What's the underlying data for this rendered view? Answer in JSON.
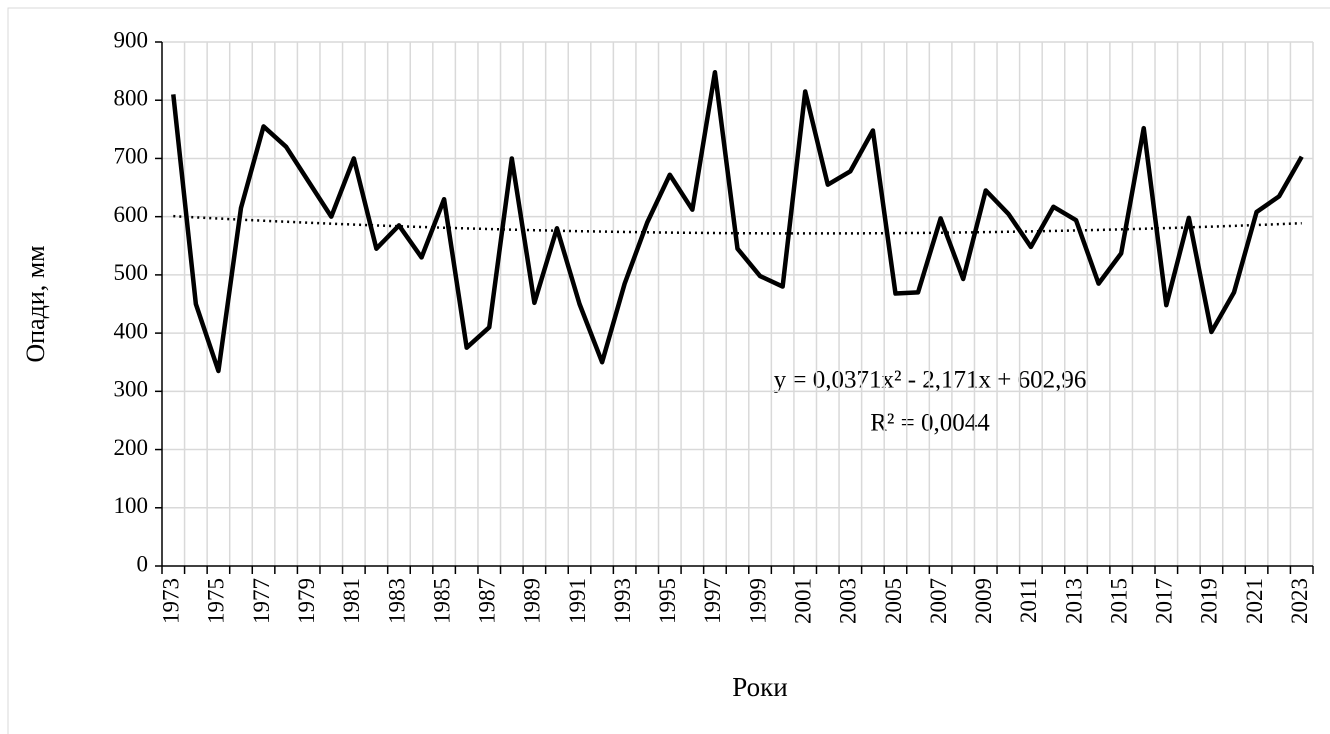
{
  "chart_data": {
    "type": "line",
    "x_label": "Роки",
    "y_label": "Опади, мм",
    "categories": [
      "1973",
      null,
      "1975",
      null,
      "1977",
      null,
      "1979",
      null,
      "1981",
      null,
      "1983",
      null,
      "1985",
      null,
      "1987",
      null,
      "1989",
      null,
      "1991",
      null,
      "1993",
      null,
      "1995",
      null,
      "1997",
      null,
      "1999",
      null,
      "2001",
      null,
      "2003",
      null,
      "2005",
      null,
      "2007",
      null,
      "2009",
      null,
      "2011",
      null,
      "2013",
      null,
      "2015",
      null,
      "2017",
      null,
      "2019",
      null,
      "2021",
      null,
      "2023"
    ],
    "series": [
      {
        "color": "#000000",
        "values": [
          810,
          450,
          335,
          615,
          755,
          720,
          660,
          600,
          700,
          545,
          585,
          530,
          630,
          375,
          410,
          700,
          452,
          580,
          450,
          350,
          485,
          590,
          672,
          612,
          848,
          545,
          498,
          480,
          815,
          655,
          678,
          748,
          468,
          470,
          597,
          493,
          645,
          605,
          548,
          617,
          594,
          485,
          537,
          752,
          448,
          598,
          402,
          470,
          608,
          635,
          703
        ]
      }
    ],
    "trendline": {
      "color": "#000000",
      "coefficients": [
        0.0371,
        -2.171,
        602.96
      ]
    },
    "annotations": [
      "y = 0,0371x² - 2,171x + 602,96",
      "R² = 0,0044"
    ],
    "ylim": [
      0,
      900
    ],
    "yticks": [
      0,
      100,
      200,
      300,
      400,
      500,
      600,
      700,
      800,
      900
    ],
    "grid": true
  }
}
